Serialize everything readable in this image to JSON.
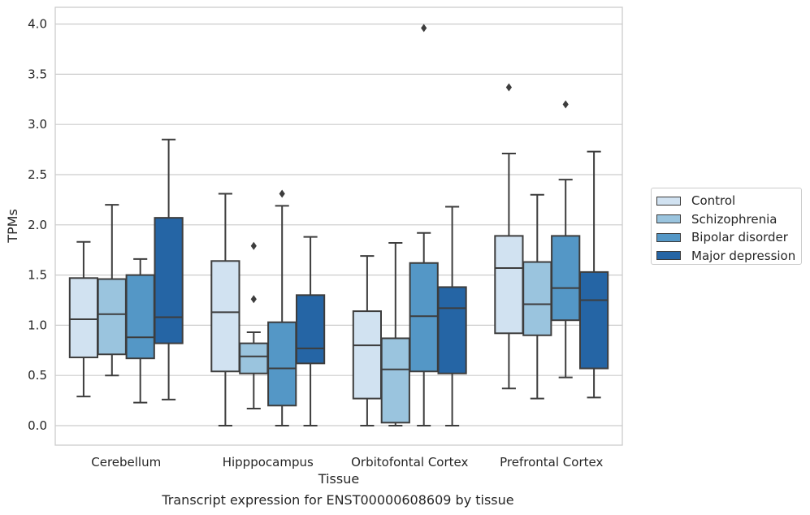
{
  "chart_data": {
    "type": "box",
    "caption": "Transcript expression for ENST00000608609 by tissue",
    "xlabel": "Tissue",
    "ylabel": "TPMs",
    "ylim": [
      -0.18,
      4.17
    ],
    "yticks": [
      "0.0",
      "0.5",
      "1.0",
      "1.5",
      "2.0",
      "2.5",
      "3.0",
      "3.5",
      "4.0"
    ],
    "grid": "horizontal",
    "legend_position": "right",
    "categories": [
      "Cerebellum",
      "Hipppocampus",
      "Orbitofontal Cortex",
      "Prefrontal Cortex"
    ],
    "series": [
      {
        "name": "Control",
        "color": "#d1e2f1",
        "boxes": [
          {
            "whislo": 0.29,
            "q1": 0.68,
            "med": 1.06,
            "q3": 1.47,
            "whishi": 1.83,
            "fliers": []
          },
          {
            "whislo": 0.0,
            "q1": 0.54,
            "med": 1.13,
            "q3": 1.64,
            "whishi": 2.31,
            "fliers": []
          },
          {
            "whislo": 0.0,
            "q1": 0.27,
            "med": 0.8,
            "q3": 1.14,
            "whishi": 1.69,
            "fliers": []
          },
          {
            "whislo": 0.37,
            "q1": 0.92,
            "med": 1.57,
            "q3": 1.89,
            "whishi": 2.71,
            "fliers": [
              3.37
            ]
          }
        ]
      },
      {
        "name": "Schizophrenia",
        "color": "#9ac4de",
        "boxes": [
          {
            "whislo": 0.5,
            "q1": 0.71,
            "med": 1.11,
            "q3": 1.46,
            "whishi": 2.2,
            "fliers": []
          },
          {
            "whislo": 0.17,
            "q1": 0.52,
            "med": 0.69,
            "q3": 0.82,
            "whishi": 0.93,
            "fliers": [
              1.79,
              1.26
            ]
          },
          {
            "whislo": 0.0,
            "q1": 0.03,
            "med": 0.56,
            "q3": 0.87,
            "whishi": 1.82,
            "fliers": []
          },
          {
            "whislo": 0.27,
            "q1": 0.9,
            "med": 1.21,
            "q3": 1.63,
            "whishi": 2.3,
            "fliers": []
          }
        ]
      },
      {
        "name": "Bipolar disorder",
        "color": "#5497c6",
        "boxes": [
          {
            "whislo": 0.23,
            "q1": 0.67,
            "med": 0.88,
            "q3": 1.5,
            "whishi": 1.66,
            "fliers": []
          },
          {
            "whislo": 0.0,
            "q1": 0.2,
            "med": 0.57,
            "q3": 1.03,
            "whishi": 2.19,
            "fliers": [
              2.31
            ]
          },
          {
            "whislo": 0.0,
            "q1": 0.54,
            "med": 1.09,
            "q3": 1.62,
            "whishi": 1.92,
            "fliers": [
              3.96
            ]
          },
          {
            "whislo": 0.48,
            "q1": 1.05,
            "med": 1.37,
            "q3": 1.89,
            "whishi": 2.45,
            "fliers": [
              3.2
            ]
          }
        ]
      },
      {
        "name": "Major depression",
        "color": "#2565a5",
        "boxes": [
          {
            "whislo": 0.26,
            "q1": 0.82,
            "med": 1.08,
            "q3": 2.07,
            "whishi": 2.85,
            "fliers": []
          },
          {
            "whislo": 0.0,
            "q1": 0.62,
            "med": 0.77,
            "q3": 1.3,
            "whishi": 1.88,
            "fliers": []
          },
          {
            "whislo": 0.0,
            "q1": 0.52,
            "med": 1.17,
            "q3": 1.38,
            "whishi": 2.18,
            "fliers": []
          },
          {
            "whislo": 0.28,
            "q1": 0.57,
            "med": 1.25,
            "q3": 1.53,
            "whishi": 2.73,
            "fliers": []
          }
        ]
      }
    ]
  }
}
